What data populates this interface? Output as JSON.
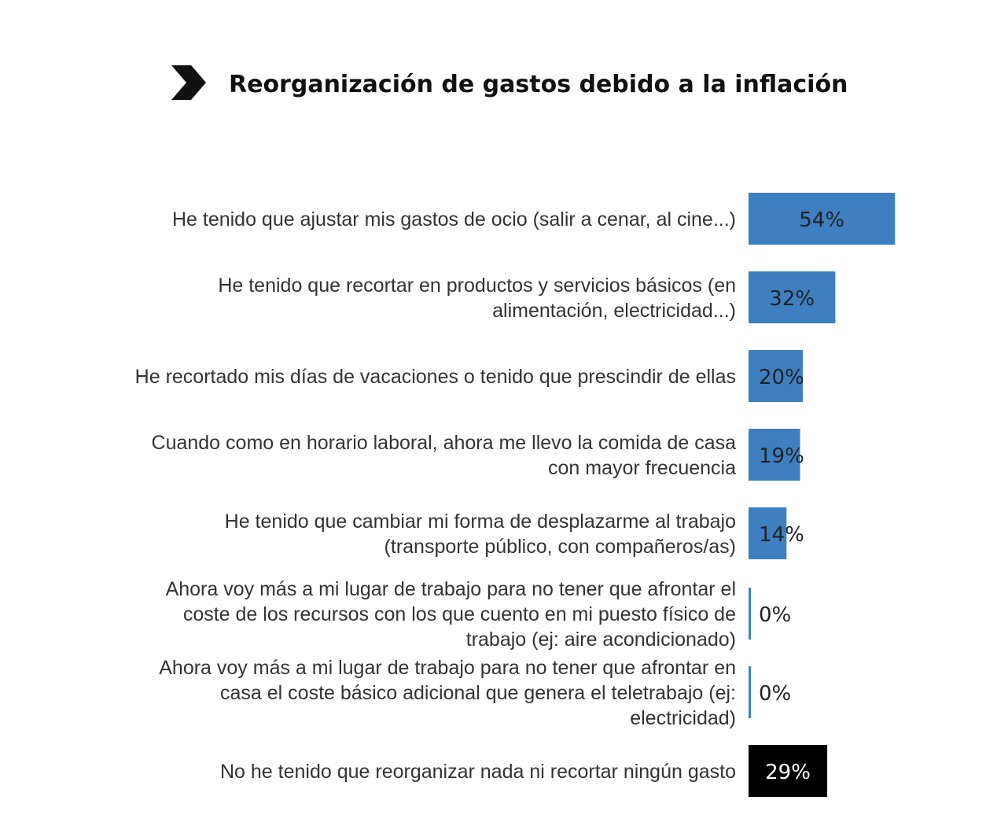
{
  "chart_data": {
    "type": "bar",
    "orientation": "horizontal",
    "title": "Reorganización de gastos debido a la inflación",
    "categories": [
      [
        "He tenido que ajustar mis gastos de ocio (salir a cenar, al cine...)"
      ],
      [
        "He tenido que recortar en productos y servicios básicos (en",
        "alimentación, electricidad...)"
      ],
      [
        "He recortado mis días de vacaciones o tenido que prescindir de ellas"
      ],
      [
        "Cuando como en horario laboral, ahora me llevo la comida de casa",
        "con mayor frecuencia"
      ],
      [
        "He tenido que cambiar mi forma de desplazarme al trabajo",
        "(transporte público, con compañeros/as)"
      ],
      [
        "Ahora voy más a mi lugar de trabajo para no tener que afrontar el",
        "coste de los recursos con los que cuento en mi puesto físico de",
        "trabajo (ej: aire acondicionado)"
      ],
      [
        "Ahora voy más a mi lugar de trabajo para no tener que afrontar en",
        "casa el coste básico adicional que genera el teletrabajo (ej:",
        "electricidad)"
      ],
      [
        "No he tenido que reorganizar nada ni recortar ningún gasto"
      ]
    ],
    "values": [
      54,
      32,
      20,
      19,
      14,
      0,
      0,
      29
    ],
    "value_labels": [
      "54%",
      "32%",
      "20%",
      "19%",
      "14%",
      "0%",
      "0%",
      "29%"
    ],
    "unit": "%",
    "bar_colors": [
      "#3e7fc1",
      "#3e7fc1",
      "#3e7fc1",
      "#3e7fc1",
      "#3e7fc1",
      "#3e7fc1",
      "#3e7fc1",
      "#000000"
    ],
    "value_label_colors": [
      "#222222",
      "#222222",
      "#222222",
      "#222222",
      "#222222",
      "#222222",
      "#222222",
      "#ffffff"
    ],
    "xlim": [
      0,
      100
    ],
    "grid": false,
    "legend": "none"
  }
}
